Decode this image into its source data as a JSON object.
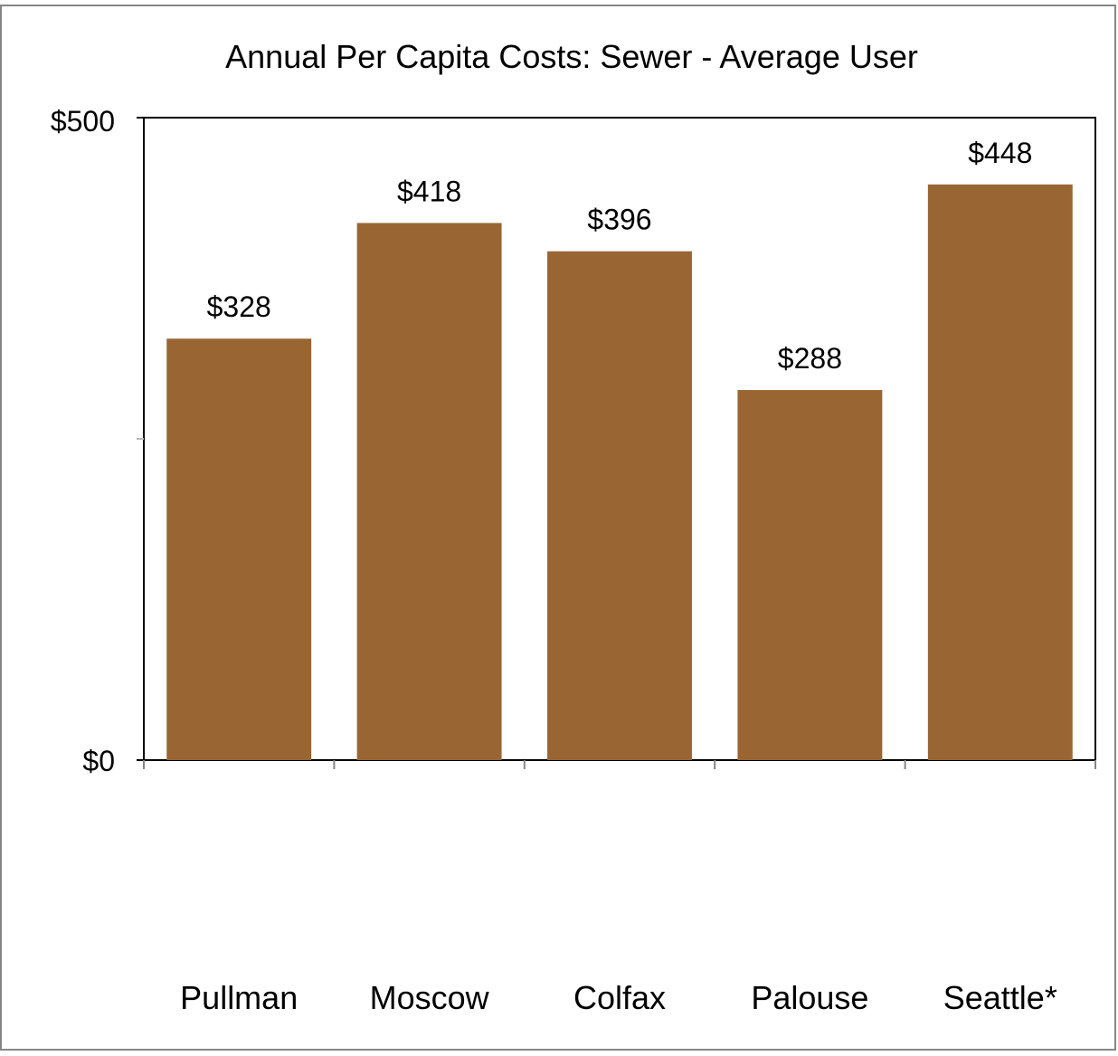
{
  "chart_data": {
    "type": "bar",
    "title": "Annual Per Capita Costs: Sewer - Average User",
    "xlabel": "",
    "ylabel": "",
    "categories": [
      "Pullman",
      "Moscow",
      "Colfax",
      "Palouse",
      "Seattle*"
    ],
    "values": [
      328,
      418,
      396,
      288,
      448
    ],
    "value_labels": [
      "$328",
      "$418",
      "$396",
      "$288",
      "$448"
    ],
    "ylim": [
      0,
      500
    ],
    "y_tick_labels": [
      "$0",
      "$500"
    ],
    "grid": false,
    "legend": "none",
    "colors": {
      "bar": "#996633",
      "axis": "#000000",
      "frame": "#868686"
    }
  }
}
